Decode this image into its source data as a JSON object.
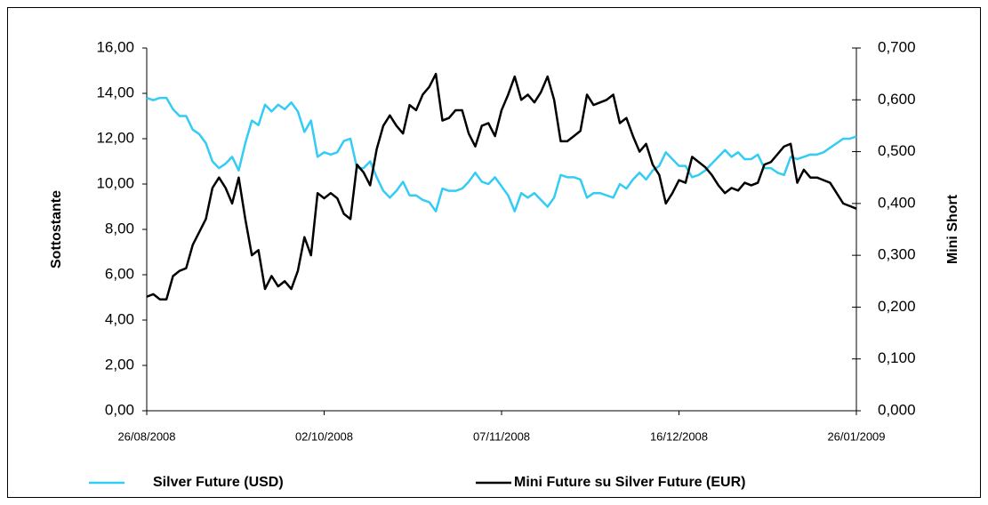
{
  "chart_data": {
    "type": "line",
    "y_label": "Sottostante",
    "y2_label": "Mini Short",
    "categories": [
      "26/08/2008",
      null,
      null,
      null,
      null,
      null,
      null,
      null,
      null,
      null,
      null,
      null,
      null,
      null,
      null,
      null,
      null,
      null,
      null,
      null,
      null,
      null,
      null,
      null,
      null,
      null,
      null,
      "02/10/2008",
      null,
      null,
      null,
      null,
      null,
      null,
      null,
      null,
      null,
      null,
      null,
      null,
      null,
      null,
      null,
      null,
      null,
      null,
      null,
      null,
      null,
      null,
      null,
      null,
      null,
      null,
      "07/11/2008",
      null,
      null,
      null,
      null,
      null,
      null,
      null,
      null,
      null,
      null,
      null,
      null,
      null,
      null,
      null,
      null,
      null,
      null,
      null,
      null,
      null,
      null,
      null,
      null,
      null,
      null,
      "16/12/2008",
      null,
      null,
      null,
      null,
      null,
      null,
      null,
      null,
      null,
      null,
      null,
      null,
      null,
      null,
      null,
      null,
      null,
      null,
      null,
      null,
      null,
      null,
      null,
      null,
      null,
      null,
      "26/01/2009"
    ],
    "series": [
      {
        "name": "Silver Future (USD)",
        "color": "#33ccf5",
        "axis": "y",
        "values": [
          13.8,
          13.7,
          13.8,
          13.8,
          13.3,
          13.0,
          13.0,
          12.4,
          12.2,
          11.8,
          11.0,
          10.7,
          10.9,
          11.2,
          10.6,
          11.8,
          12.8,
          12.6,
          13.5,
          13.2,
          13.5,
          13.3,
          13.6,
          13.2,
          12.3,
          12.8,
          11.2,
          11.4,
          11.3,
          11.4,
          11.9,
          12.0,
          10.7,
          10.7,
          11.0,
          10.3,
          9.7,
          9.4,
          9.7,
          10.1,
          9.5,
          9.5,
          9.3,
          9.2,
          8.8,
          9.8,
          9.7,
          9.7,
          9.8,
          10.1,
          10.5,
          10.1,
          10.0,
          10.3,
          9.9,
          9.5,
          8.8,
          9.6,
          9.4,
          9.6,
          9.3,
          9.0,
          9.4,
          10.4,
          10.3,
          10.3,
          10.2,
          9.4,
          9.6,
          9.6,
          9.5,
          9.4,
          10.0,
          9.8,
          10.2,
          10.5,
          10.2,
          10.6,
          10.8,
          11.4,
          11.1,
          10.8,
          10.8,
          10.3,
          10.4,
          10.6,
          10.9,
          11.2,
          11.5,
          11.2,
          11.4,
          11.1,
          11.1,
          11.3,
          10.7,
          10.7,
          10.5,
          10.4,
          11.2,
          11.1,
          11.2,
          11.3,
          11.3,
          11.4,
          11.6,
          11.8,
          12.0,
          12.0,
          12.1
        ]
      },
      {
        "name": "Mini Future su Silver Future (EUR)",
        "color": "#000000",
        "axis": "y2",
        "values": [
          0.22,
          0.225,
          0.215,
          0.215,
          0.26,
          0.27,
          0.275,
          0.32,
          0.345,
          0.37,
          0.43,
          0.45,
          0.43,
          0.4,
          0.45,
          0.37,
          0.3,
          0.31,
          0.235,
          0.26,
          0.24,
          0.25,
          0.235,
          0.27,
          0.335,
          0.3,
          0.42,
          0.41,
          0.42,
          0.41,
          0.38,
          0.37,
          0.475,
          0.46,
          0.435,
          0.505,
          0.55,
          0.57,
          0.55,
          0.535,
          0.59,
          0.58,
          0.61,
          0.625,
          0.65,
          0.56,
          0.565,
          0.58,
          0.58,
          0.535,
          0.51,
          0.55,
          0.555,
          0.53,
          0.58,
          0.61,
          0.645,
          0.6,
          0.61,
          0.595,
          0.615,
          0.645,
          0.6,
          0.52,
          0.52,
          0.53,
          0.54,
          0.61,
          0.59,
          0.595,
          0.6,
          0.61,
          0.555,
          0.565,
          0.53,
          0.5,
          0.515,
          0.475,
          0.455,
          0.4,
          0.42,
          0.445,
          0.44,
          0.49,
          0.48,
          0.47,
          0.455,
          0.435,
          0.42,
          0.43,
          0.425,
          0.44,
          0.435,
          0.44,
          0.475,
          0.48,
          0.495,
          0.51,
          0.515,
          0.44,
          0.465,
          0.45,
          0.45,
          0.445,
          0.44,
          0.42,
          0.4,
          0.395,
          0.39
        ]
      }
    ],
    "ylim": [
      0,
      16
    ],
    "yticks": [
      {
        "value": 0,
        "label": "0,00"
      },
      {
        "value": 2,
        "label": "2,00"
      },
      {
        "value": 4,
        "label": "4,00"
      },
      {
        "value": 6,
        "label": "6,00"
      },
      {
        "value": 8,
        "label": "8,00"
      },
      {
        "value": 10,
        "label": "10,00"
      },
      {
        "value": 12,
        "label": "12,00"
      },
      {
        "value": 14,
        "label": "14,00"
      },
      {
        "value": 16,
        "label": "16,00"
      }
    ],
    "y2lim": [
      0,
      0.7
    ],
    "y2ticks": [
      {
        "value": 0,
        "label": "0,000"
      },
      {
        "value": 0.1,
        "label": "0,100"
      },
      {
        "value": 0.2,
        "label": "0,200"
      },
      {
        "value": 0.3,
        "label": "0,300"
      },
      {
        "value": 0.4,
        "label": "0,400"
      },
      {
        "value": 0.5,
        "label": "0,500"
      },
      {
        "value": 0.6,
        "label": "0,600"
      },
      {
        "value": 0.7,
        "label": "0,700"
      }
    ],
    "grid": false,
    "legend": "bottom"
  }
}
